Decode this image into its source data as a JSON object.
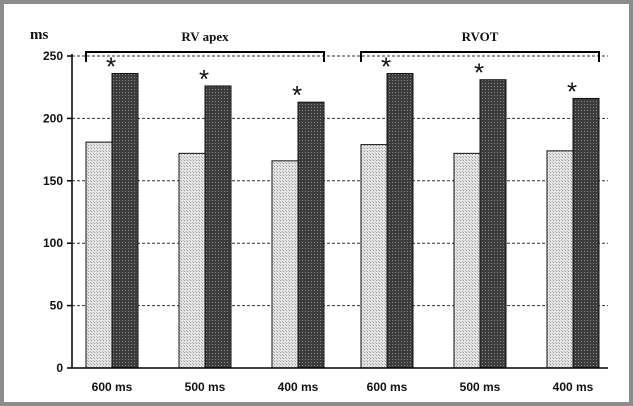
{
  "chart_data": {
    "type": "bar",
    "ylabel": "ms",
    "ylim": [
      0,
      250
    ],
    "yticks": [
      "0",
      "50",
      "100",
      "150",
      "200",
      "250"
    ],
    "grid": "horizontal dashed",
    "groups": [
      {
        "label": "RV apex",
        "categories": [
          "600 ms",
          "500 ms",
          "400 ms"
        ],
        "series": [
          {
            "color": "#dcdcdc",
            "values": [
              181,
              172,
              166
            ]
          },
          {
            "color": "#3a3a3a",
            "values": [
              236,
              226,
              213
            ]
          }
        ],
        "annotations": [
          "*",
          "*",
          "*"
        ]
      },
      {
        "label": "RVOT",
        "categories": [
          "600 ms",
          "500 ms",
          "400 ms"
        ],
        "series": [
          {
            "color": "#dcdcdc",
            "values": [
              179,
              172,
              174
            ]
          },
          {
            "color": "#3a3a3a",
            "values": [
              236,
              231,
              216
            ]
          }
        ],
        "annotations": [
          "*",
          "*",
          "*"
        ]
      }
    ]
  }
}
